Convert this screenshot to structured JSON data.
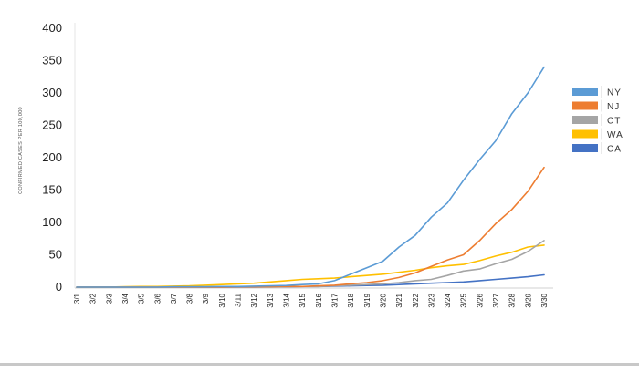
{
  "chart_data": {
    "type": "line",
    "title": "",
    "xlabel": "",
    "ylabel": "CONFIRMED CASES PER 100,000",
    "ylim": [
      0,
      400
    ],
    "yticks": [
      0,
      50,
      100,
      150,
      200,
      250,
      300,
      350,
      400
    ],
    "grid": false,
    "legend_position": "right",
    "categories": [
      "3/1",
      "3/2",
      "3/3",
      "3/4",
      "3/5",
      "3/6",
      "3/7",
      "3/8",
      "3/9",
      "3/10",
      "3/11",
      "3/12",
      "3/13",
      "3/14",
      "3/15",
      "3/16",
      "3/17",
      "3/18",
      "3/19",
      "3/20",
      "3/21",
      "3/22",
      "3/23",
      "3/24",
      "3/25",
      "3/26",
      "3/27",
      "3/28",
      "3/29",
      "3/30"
    ],
    "series": [
      {
        "name": "NY",
        "color": "#5b9bd5",
        "values": [
          0,
          0,
          0,
          0,
          0,
          0,
          0.5,
          0.5,
          0.5,
          1,
          1,
          1.5,
          2,
          2.5,
          4,
          5,
          10,
          20,
          30,
          40,
          62,
          80,
          108,
          130,
          165,
          197,
          226,
          268,
          300,
          340
        ]
      },
      {
        "name": "NJ",
        "color": "#ed7d31",
        "values": [
          0,
          0,
          0,
          0,
          0,
          0,
          0,
          0,
          0,
          0,
          0.5,
          0.5,
          0.5,
          1,
          1,
          2,
          3,
          5,
          7,
          10,
          15,
          22,
          32,
          42,
          50,
          72,
          98,
          120,
          148,
          185
        ]
      },
      {
        "name": "CT",
        "color": "#a5a5a5",
        "values": [
          0,
          0,
          0,
          0,
          0,
          0,
          0,
          0,
          0,
          0,
          0,
          0,
          0,
          0.5,
          1,
          1,
          2,
          3,
          4,
          5,
          7,
          10,
          12,
          18,
          25,
          28,
          36,
          43,
          55,
          72
        ]
      },
      {
        "name": "WA",
        "color": "#ffc000",
        "values": [
          0,
          0,
          0,
          0.5,
          1,
          1,
          1.5,
          2,
          3,
          4,
          5,
          6,
          8,
          10,
          12,
          13,
          14,
          16,
          18,
          20,
          23,
          26,
          30,
          33,
          35,
          41,
          48,
          54,
          62,
          65
        ]
      },
      {
        "name": "CA",
        "color": "#4472c4",
        "values": [
          0,
          0,
          0,
          0,
          0,
          0,
          0,
          0,
          0,
          0,
          0,
          0,
          0.5,
          0.5,
          1,
          1,
          1.5,
          2,
          2.5,
          3,
          4,
          5,
          6,
          7,
          8,
          10,
          12,
          14,
          16,
          19
        ]
      }
    ]
  }
}
